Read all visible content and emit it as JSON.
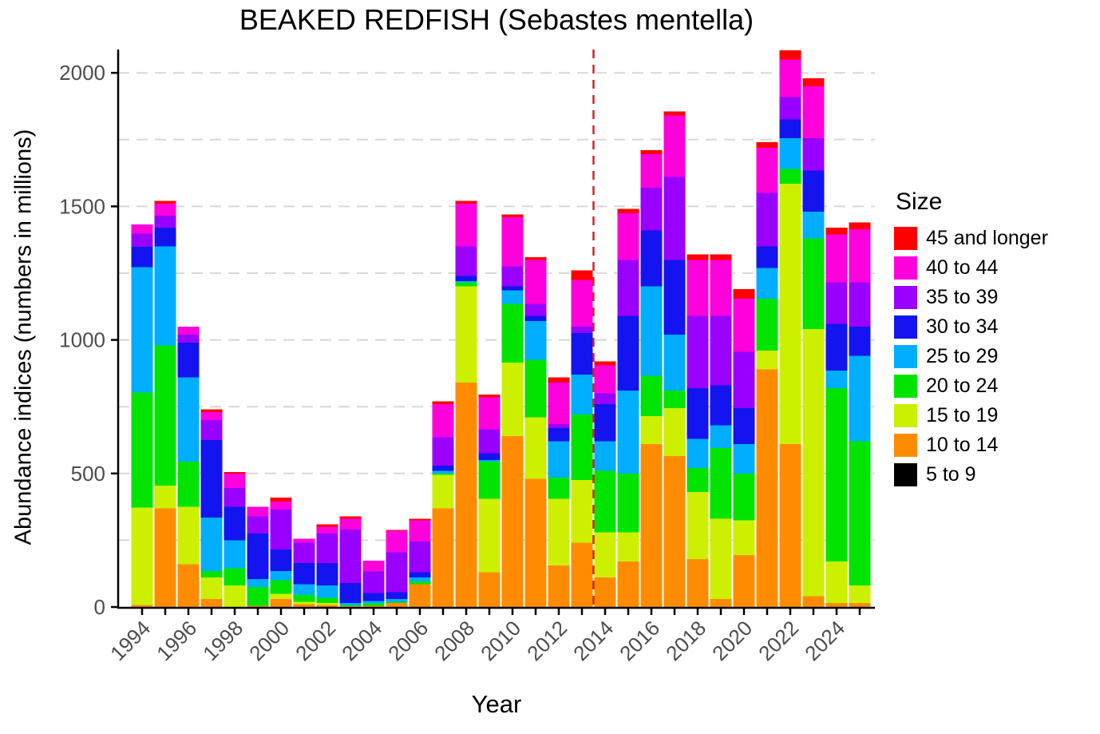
{
  "chart_data": {
    "type": "bar",
    "stacked": true,
    "title": "BEAKED REDFISH (Sebastes mentella)",
    "xlabel": "Year",
    "ylabel": "Abundance indices (numbers in millions)",
    "ylim": [
      0,
      2100
    ],
    "yticks": [
      0,
      500,
      1000,
      1500,
      2000
    ],
    "gridline_interval": 250,
    "grid": "dashed-light-gray",
    "legend_position": "right",
    "categories": [
      1994,
      1995,
      1996,
      1997,
      1998,
      1999,
      2000,
      2001,
      2002,
      2003,
      2004,
      2005,
      2006,
      2007,
      2008,
      2009,
      2010,
      2011,
      2012,
      2013,
      2014,
      2015,
      2016,
      2017,
      2018,
      2019,
      2020,
      2021,
      2022,
      2023,
      2024,
      2025
    ],
    "x_labeled_ticks": [
      1994,
      1996,
      1998,
      2000,
      2002,
      2004,
      2006,
      2008,
      2010,
      2012,
      2014,
      2016,
      2018,
      2020,
      2022,
      2024
    ],
    "reference_line": {
      "x": 2013.5,
      "style": "dashed",
      "color": "#CD2626"
    },
    "stack_order": "bottom_to_top",
    "series": [
      {
        "name": "5 to 9",
        "color": "#000000",
        "values": [
          0,
          0,
          0,
          0,
          0,
          0,
          0,
          0,
          0,
          0,
          0,
          0,
          0,
          0,
          0,
          0,
          0,
          0,
          0,
          0,
          0,
          0,
          0,
          0,
          0,
          0,
          0,
          0,
          0,
          0,
          0,
          0
        ]
      },
      {
        "name": "10 to 14",
        "color": "#FF8C00",
        "values": [
          8,
          370,
          160,
          30,
          0,
          5,
          30,
          10,
          8,
          3,
          5,
          15,
          85,
          370,
          840,
          130,
          640,
          480,
          155,
          240,
          110,
          170,
          610,
          565,
          180,
          30,
          195,
          890,
          610,
          40,
          15,
          15
        ]
      },
      {
        "name": "15 to 19",
        "color": "#CCF000",
        "values": [
          365,
          85,
          215,
          80,
          80,
          0,
          20,
          10,
          7,
          0,
          0,
          0,
          0,
          125,
          360,
          275,
          275,
          230,
          250,
          235,
          170,
          110,
          105,
          180,
          250,
          300,
          130,
          70,
          975,
          1000,
          155,
          65
        ]
      },
      {
        "name": "20 to 24",
        "color": "#00E400",
        "values": [
          430,
          525,
          170,
          25,
          65,
          70,
          50,
          25,
          20,
          4,
          8,
          5,
          10,
          5,
          15,
          140,
          220,
          215,
          80,
          245,
          230,
          220,
          150,
          65,
          90,
          265,
          175,
          195,
          55,
          340,
          650,
          540
        ]
      },
      {
        "name": "25 to 29",
        "color": "#00AEFF",
        "values": [
          470,
          370,
          315,
          200,
          105,
          30,
          35,
          40,
          45,
          8,
          10,
          10,
          15,
          10,
          5,
          5,
          50,
          145,
          135,
          150,
          110,
          310,
          335,
          210,
          110,
          85,
          110,
          115,
          115,
          100,
          65,
          320
        ]
      },
      {
        "name": "30 to 34",
        "color": "#1414F0",
        "values": [
          75,
          70,
          130,
          290,
          125,
          170,
          80,
          80,
          85,
          75,
          30,
          25,
          20,
          20,
          20,
          25,
          15,
          20,
          50,
          155,
          140,
          280,
          210,
          280,
          190,
          150,
          135,
          80,
          70,
          155,
          175,
          110
        ]
      },
      {
        "name": "35 to 39",
        "color": "#9900FF",
        "values": [
          50,
          45,
          30,
          75,
          70,
          65,
          150,
          75,
          110,
          200,
          80,
          150,
          115,
          105,
          110,
          90,
          75,
          45,
          15,
          25,
          40,
          210,
          160,
          310,
          270,
          260,
          210,
          200,
          85,
          120,
          155,
          165
        ]
      },
      {
        "name": "40 to 44",
        "color": "#FF00DC",
        "values": [
          35,
          45,
          30,
          30,
          55,
          35,
          30,
          15,
          25,
          40,
          40,
          80,
          80,
          125,
          160,
          120,
          185,
          165,
          155,
          175,
          105,
          175,
          125,
          230,
          210,
          210,
          200,
          170,
          140,
          195,
          180,
          200
        ]
      },
      {
        "name": "45 and longer",
        "color": "#FF0000",
        "values": [
          0,
          10,
          0,
          10,
          5,
          0,
          15,
          0,
          10,
          10,
          0,
          3,
          5,
          10,
          10,
          10,
          10,
          10,
          20,
          35,
          15,
          15,
          15,
          15,
          20,
          20,
          35,
          20,
          35,
          30,
          25,
          25
        ]
      }
    ],
    "legend": {
      "title": "Size",
      "items_top_to_bottom": [
        "45 and longer",
        "40 to 44",
        "35 to 39",
        "30 to 34",
        "25 to 29",
        "20 to 24",
        "15 to 19",
        "10 to 14",
        "5 to 9"
      ]
    }
  },
  "style": {
    "tick_label_color": "#4D4D4D",
    "gridline_color": "#D8D8D8",
    "axis_color": "#000000",
    "background": "#FFFFFF"
  }
}
